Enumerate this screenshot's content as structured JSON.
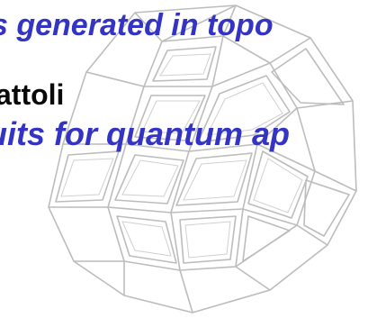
{
  "slide": {
    "line1": "s generated in topo",
    "line2": "attoli",
    "line3": "uits for quantum ap"
  },
  "colors": {
    "accent_text": "#3434c4",
    "dark_text": "#0a0a0a",
    "sketch": "#b8b8b8"
  },
  "background": {
    "icon": "geodesic-dome-sketch-icon"
  }
}
